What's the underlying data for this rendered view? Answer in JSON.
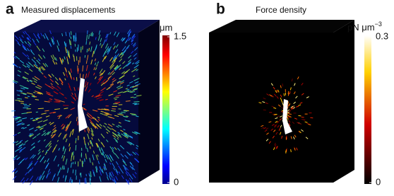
{
  "panels": [
    {
      "label": "a",
      "title": "Measured displacements",
      "colorbar": {
        "unit": "μm",
        "ticks": [
          0,
          1.5
        ]
      }
    },
    {
      "label": "b",
      "title": "Force density",
      "colorbar": {
        "unit": "pN μm",
        "unit_exponent": "−3",
        "ticks": [
          0,
          0.3
        ]
      }
    }
  ]
}
